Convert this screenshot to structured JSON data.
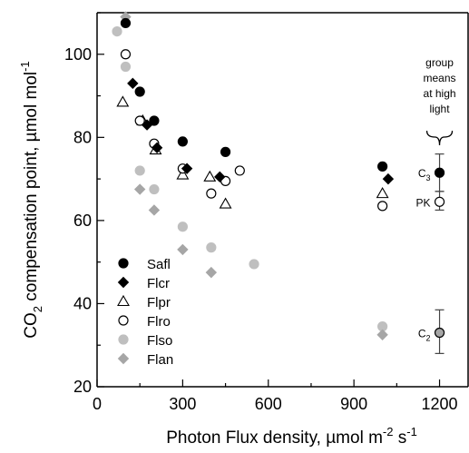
{
  "chart_data": {
    "type": "scatter",
    "xlabel": "Photon Flux density, µmol m⁻² s⁻¹",
    "xlabel_parts": {
      "main": "Photon Flux density, µmol m",
      "sup1": "-2",
      "mid": " s",
      "sup2": "-1"
    },
    "ylabel": "CO₂ compensation point, µmol mol⁻¹",
    "ylabel_parts": {
      "pre": "CO",
      "sub": "2",
      "main": " compensation point, µmol mol",
      "sup": "-1"
    },
    "xlim": [
      0,
      1300
    ],
    "ylim": [
      20,
      110
    ],
    "xticks": [
      0,
      300,
      600,
      900,
      1200
    ],
    "yticks": [
      20,
      40,
      60,
      80,
      100
    ],
    "grid": false,
    "legend_position": "bottom-left",
    "series": [
      {
        "name": "Safl",
        "marker": "circle",
        "fill": "#000000",
        "stroke": "#000000",
        "points": [
          [
            100,
            107.5
          ],
          [
            150,
            91
          ],
          [
            200,
            84
          ],
          [
            300,
            79
          ],
          [
            450,
            76.5
          ],
          [
            1000,
            73
          ]
        ]
      },
      {
        "name": "Flcr",
        "marker": "diamond",
        "fill": "#000000",
        "stroke": "#000000",
        "points": [
          [
            125,
            93
          ],
          [
            175,
            83
          ],
          [
            210,
            77.5
          ],
          [
            315,
            72.5
          ],
          [
            430,
            70.5
          ],
          [
            1020,
            70
          ]
        ]
      },
      {
        "name": "Flpr",
        "marker": "triangle",
        "fill": "#ffffff",
        "stroke": "#000000",
        "points": [
          [
            90,
            88.5
          ],
          [
            160,
            84
          ],
          [
            205,
            77
          ],
          [
            300,
            71
          ],
          [
            395,
            70.5
          ],
          [
            450,
            64
          ],
          [
            1000,
            66.5
          ]
        ]
      },
      {
        "name": "Flro",
        "marker": "circle",
        "fill": "#ffffff",
        "stroke": "#000000",
        "points": [
          [
            100,
            100
          ],
          [
            150,
            84
          ],
          [
            200,
            78.5
          ],
          [
            300,
            72.5
          ],
          [
            400,
            66.5
          ],
          [
            450,
            69.5
          ],
          [
            500,
            72
          ],
          [
            1000,
            63.5
          ]
        ]
      },
      {
        "name": "Flso",
        "marker": "circle",
        "fill": "#bfbfbf",
        "stroke": "#bfbfbf",
        "points": [
          [
            70,
            105.5
          ],
          [
            100,
            97
          ],
          [
            150,
            72
          ],
          [
            200,
            67.5
          ],
          [
            300,
            58.5
          ],
          [
            400,
            53.5
          ],
          [
            550,
            49.5
          ],
          [
            1000,
            34.5
          ]
        ]
      },
      {
        "name": "Flan",
        "marker": "diamond",
        "fill": "#a6a6a6",
        "stroke": "#a6a6a6",
        "points": [
          [
            100,
            109
          ],
          [
            150,
            67.5
          ],
          [
            200,
            62.5
          ],
          [
            300,
            53
          ],
          [
            400,
            47.5
          ],
          [
            1000,
            32.5
          ]
        ]
      }
    ],
    "group_means": [
      {
        "label": "C3",
        "label_main": "C",
        "label_sub": "3",
        "x": 1200,
        "y": 71.5,
        "err_low": 67,
        "err_high": 76,
        "fill": "#000000",
        "stroke": "#000000"
      },
      {
        "label": "PK",
        "label_main": "PK",
        "label_sub": "",
        "x": 1200,
        "y": 64.5,
        "err_low": 62.5,
        "err_high": 67,
        "fill": "#ffffff",
        "stroke": "#000000"
      },
      {
        "label": "C2",
        "label_main": "C",
        "label_sub": "2",
        "x": 1200,
        "y": 33,
        "err_low": 28,
        "err_high": 38.5,
        "fill": "#a6a6a6",
        "stroke": "#000000"
      }
    ],
    "annotation": {
      "lines": [
        "group",
        "means",
        "at high",
        "light"
      ],
      "x": 1200,
      "y": 100
    }
  }
}
